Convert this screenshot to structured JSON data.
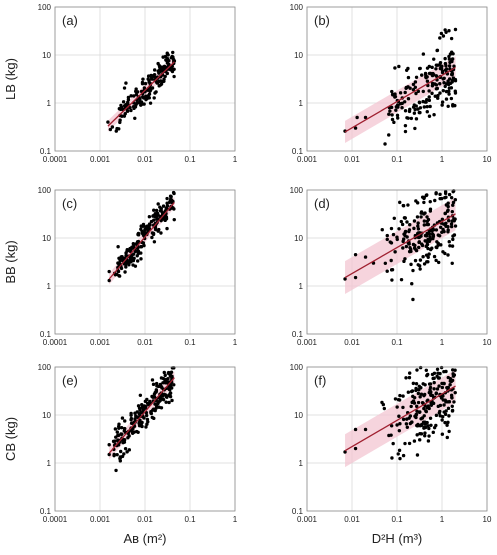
{
  "chart_data": [
    {
      "type": "scatter",
      "panel_label": "(a)",
      "xlabel": "",
      "ylabel": "LB (kg)",
      "x_scale": "log",
      "y_scale": "log",
      "xlim": [
        0.0001,
        1
      ],
      "ylim": [
        0.1,
        100
      ],
      "x_ticks": [
        "0.0001",
        "0.001",
        "0.01",
        "0.1",
        "1"
      ],
      "y_ticks": [
        "0.1",
        "1",
        "10",
        "100"
      ],
      "grid": true,
      "fit_line": [
        [
          0.0015,
          0.33
        ],
        [
          0.045,
          7.2
        ]
      ],
      "band_width_factor": 1.3,
      "point_cloud": {
        "n": 180,
        "x_range": [
          0.0018,
          0.045
        ],
        "slope": 0.9,
        "scatter": 0.15,
        "seed": 11
      },
      "points": [
        [
          0.0017,
          0.28
        ],
        [
          0.0023,
          0.26
        ],
        [
          0.0015,
          0.4
        ],
        [
          0.0028,
          0.55
        ],
        [
          0.004,
          0.75
        ],
        [
          0.012,
          2.0
        ],
        [
          0.03,
          5.5
        ],
        [
          0.045,
          7.5
        ]
      ]
    },
    {
      "type": "scatter",
      "panel_label": "(b)",
      "xlabel": "",
      "ylabel": "",
      "x_scale": "log",
      "y_scale": "log",
      "xlim": [
        0.001,
        10
      ],
      "ylim": [
        0.1,
        100
      ],
      "x_ticks": [
        "0.001",
        "0.01",
        "0.1",
        "1",
        "10"
      ],
      "y_ticks": [
        "0.1",
        "1",
        "10",
        "100"
      ],
      "grid": true,
      "fit_line": [
        [
          0.007,
          0.25
        ],
        [
          2.0,
          5.5
        ]
      ],
      "band_width_factor": 1.7,
      "point_cloud": {
        "n": 200,
        "x_range": [
          0.04,
          2.0
        ],
        "slope": 0.55,
        "scatter": 0.35,
        "seed": 23
      },
      "points": [
        [
          0.007,
          0.26
        ],
        [
          0.012,
          0.3
        ],
        [
          0.013,
          0.5
        ],
        [
          0.02,
          0.5
        ],
        [
          1.5,
          7.0
        ],
        [
          1.8,
          5.0
        ]
      ]
    },
    {
      "type": "scatter",
      "panel_label": "(c)",
      "xlabel": "",
      "ylabel": "BB (kg)",
      "x_scale": "log",
      "y_scale": "log",
      "xlim": [
        0.0001,
        1
      ],
      "ylim": [
        0.1,
        100
      ],
      "x_ticks": [
        "0.0001",
        "0.001",
        "0.01",
        "0.1",
        "1"
      ],
      "y_ticks": [
        "0.1",
        "1",
        "10",
        "100"
      ],
      "grid": true,
      "fit_line": [
        [
          0.0016,
          1.4
        ],
        [
          0.045,
          55
        ]
      ],
      "band_width_factor": 1.3,
      "point_cloud": {
        "n": 200,
        "x_range": [
          0.002,
          0.045
        ],
        "slope": 1.1,
        "scatter": 0.15,
        "seed": 37
      },
      "points": [
        [
          0.0016,
          1.3
        ],
        [
          0.0016,
          2.0
        ],
        [
          0.0025,
          3.0
        ],
        [
          0.04,
          55
        ]
      ]
    },
    {
      "type": "scatter",
      "panel_label": "(d)",
      "xlabel": "",
      "ylabel": "",
      "x_scale": "log",
      "y_scale": "log",
      "xlim": [
        0.001,
        10
      ],
      "ylim": [
        0.1,
        100
      ],
      "x_ticks": [
        "0.001",
        "0.01",
        "0.1",
        "1",
        "10"
      ],
      "y_ticks": [
        "0.1",
        "1",
        "10",
        "100"
      ],
      "grid": true,
      "fit_line": [
        [
          0.007,
          1.5
        ],
        [
          2.0,
          32
        ]
      ],
      "band_width_factor": 2.2,
      "point_cloud": {
        "n": 220,
        "x_range": [
          0.04,
          2.0
        ],
        "slope": 0.55,
        "scatter": 0.4,
        "seed": 51
      },
      "points": [
        [
          0.007,
          1.4
        ],
        [
          0.012,
          1.5
        ],
        [
          0.012,
          4.5
        ],
        [
          0.02,
          4.0
        ],
        [
          0.03,
          3.0
        ],
        [
          1.8,
          55
        ]
      ]
    },
    {
      "type": "scatter",
      "panel_label": "(e)",
      "xlabel": "Aʙ (m²)",
      "ylabel": "CB (kg)",
      "x_scale": "log",
      "y_scale": "log",
      "xlim": [
        0.0001,
        1
      ],
      "ylim": [
        0.1,
        100
      ],
      "x_ticks": [
        "0.0001",
        "0.001",
        "0.01",
        "0.1",
        "1"
      ],
      "y_ticks": [
        "0.1",
        "1",
        "10",
        "100"
      ],
      "grid": true,
      "fit_line": [
        [
          0.0016,
          1.6
        ],
        [
          0.045,
          60
        ]
      ],
      "band_width_factor": 1.35,
      "point_cloud": {
        "n": 220,
        "x_range": [
          0.002,
          0.045
        ],
        "slope": 1.1,
        "scatter": 0.18,
        "seed": 67
      },
      "points": [
        [
          0.0016,
          1.5
        ],
        [
          0.0016,
          2.4
        ],
        [
          0.0025,
          3.0
        ],
        [
          0.04,
          60
        ]
      ]
    },
    {
      "type": "scatter",
      "panel_label": "(f)",
      "xlabel": "D²H (m³)",
      "ylabel": "",
      "x_scale": "log",
      "y_scale": "log",
      "xlim": [
        0.001,
        10
      ],
      "ylim": [
        0.1,
        100
      ],
      "x_ticks": [
        "0.001",
        "0.01",
        "0.1",
        "1",
        "10"
      ],
      "y_ticks": [
        "0.1",
        "1",
        "10",
        "100"
      ],
      "grid": true,
      "fit_line": [
        [
          0.007,
          1.8
        ],
        [
          2.0,
          40
        ]
      ],
      "band_width_factor": 2.2,
      "point_cloud": {
        "n": 230,
        "x_range": [
          0.04,
          2.0
        ],
        "slope": 0.55,
        "scatter": 0.4,
        "seed": 79
      },
      "points": [
        [
          0.007,
          1.7
        ],
        [
          0.012,
          2.0
        ],
        [
          0.012,
          5.0
        ],
        [
          0.02,
          5.0
        ],
        [
          1.8,
          65
        ]
      ]
    }
  ],
  "colors": {
    "points": "#000000",
    "fit_line": "#a02030",
    "band": "#f3c6d2",
    "grid": "#d9d9d9",
    "frame": "#8c8c8c"
  }
}
